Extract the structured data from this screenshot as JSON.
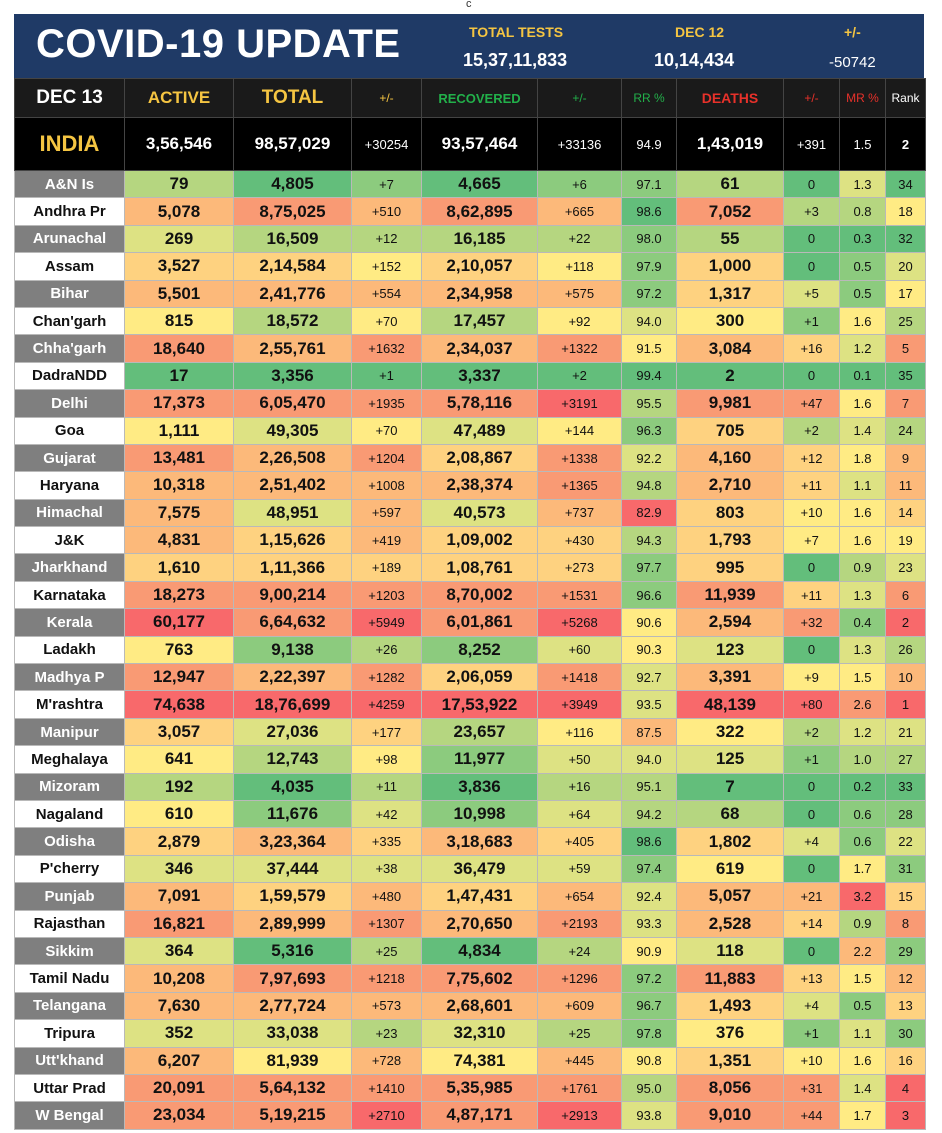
{
  "page_mark": "c",
  "header": {
    "title": "COVID-19 UPDATE",
    "tests_label": "TOTAL TESTS",
    "tests_value": "15,37,11,833",
    "dec12_label": "DEC 12",
    "dec12_value": "10,14,434",
    "diff_label": "+/-",
    "diff_value": "-50742"
  },
  "columns": {
    "date": "DEC 13",
    "active": "ACTIVE",
    "total": "TOTAL",
    "pm1": "+/-",
    "recovered": "RECOVERED",
    "pm2": "+/-",
    "rr": "RR %",
    "deaths": "DEATHS",
    "pm3": "+/-",
    "mr": "MR %",
    "rank": "Rank"
  },
  "colors": {
    "header_bg": "#1f3a66",
    "label_yellow": "#f5c542",
    "recovered_green": "#22b04a",
    "deaths_red": "#e8312a"
  },
  "india": {
    "name": "INDIA",
    "active": "3,56,546",
    "total": "98,57,029",
    "pm1": "+30254",
    "recovered": "93,57,464",
    "pm2": "+33136",
    "rr": "94.9",
    "deaths": "1,43,019",
    "pm3": "+391",
    "mr": "1.5",
    "rank": "2"
  },
  "rows": [
    [
      "A&N Is",
      "79",
      "4,805",
      "+7",
      "4,665",
      "+6",
      "97.1",
      "61",
      "0",
      "1.3",
      "34"
    ],
    [
      "Andhra Pr",
      "5,078",
      "8,75,025",
      "+510",
      "8,62,895",
      "+665",
      "98.6",
      "7,052",
      "+3",
      "0.8",
      "18"
    ],
    [
      "Arunachal",
      "269",
      "16,509",
      "+12",
      "16,185",
      "+22",
      "98.0",
      "55",
      "0",
      "0.3",
      "32"
    ],
    [
      "Assam",
      "3,527",
      "2,14,584",
      "+152",
      "2,10,057",
      "+118",
      "97.9",
      "1,000",
      "0",
      "0.5",
      "20"
    ],
    [
      "Bihar",
      "5,501",
      "2,41,776",
      "+554",
      "2,34,958",
      "+575",
      "97.2",
      "1,317",
      "+5",
      "0.5",
      "17"
    ],
    [
      "Chan'garh",
      "815",
      "18,572",
      "+70",
      "17,457",
      "+92",
      "94.0",
      "300",
      "+1",
      "1.6",
      "25"
    ],
    [
      "Chha'garh",
      "18,640",
      "2,55,761",
      "+1632",
      "2,34,037",
      "+1322",
      "91.5",
      "3,084",
      "+16",
      "1.2",
      "5"
    ],
    [
      "DadraNDD",
      "17",
      "3,356",
      "+1",
      "3,337",
      "+2",
      "99.4",
      "2",
      "0",
      "0.1",
      "35"
    ],
    [
      "Delhi",
      "17,373",
      "6,05,470",
      "+1935",
      "5,78,116",
      "+3191",
      "95.5",
      "9,981",
      "+47",
      "1.6",
      "7"
    ],
    [
      "Goa",
      "1,111",
      "49,305",
      "+70",
      "47,489",
      "+144",
      "96.3",
      "705",
      "+2",
      "1.4",
      "24"
    ],
    [
      "Gujarat",
      "13,481",
      "2,26,508",
      "+1204",
      "2,08,867",
      "+1338",
      "92.2",
      "4,160",
      "+12",
      "1.8",
      "9"
    ],
    [
      "Haryana",
      "10,318",
      "2,51,402",
      "+1008",
      "2,38,374",
      "+1365",
      "94.8",
      "2,710",
      "+11",
      "1.1",
      "11"
    ],
    [
      "Himachal",
      "7,575",
      "48,951",
      "+597",
      "40,573",
      "+737",
      "82.9",
      "803",
      "+10",
      "1.6",
      "14"
    ],
    [
      "J&K",
      "4,831",
      "1,15,626",
      "+419",
      "1,09,002",
      "+430",
      "94.3",
      "1,793",
      "+7",
      "1.6",
      "19"
    ],
    [
      "Jharkhand",
      "1,610",
      "1,11,366",
      "+189",
      "1,08,761",
      "+273",
      "97.7",
      "995",
      "0",
      "0.9",
      "23"
    ],
    [
      "Karnataka",
      "18,273",
      "9,00,214",
      "+1203",
      "8,70,002",
      "+1531",
      "96.6",
      "11,939",
      "+11",
      "1.3",
      "6"
    ],
    [
      "Kerala",
      "60,177",
      "6,64,632",
      "+5949",
      "6,01,861",
      "+5268",
      "90.6",
      "2,594",
      "+32",
      "0.4",
      "2"
    ],
    [
      "Ladakh",
      "763",
      "9,138",
      "+26",
      "8,252",
      "+60",
      "90.3",
      "123",
      "0",
      "1.3",
      "26"
    ],
    [
      "Madhya P",
      "12,947",
      "2,22,397",
      "+1282",
      "2,06,059",
      "+1418",
      "92.7",
      "3,391",
      "+9",
      "1.5",
      "10"
    ],
    [
      "M'rashtra",
      "74,638",
      "18,76,699",
      "+4259",
      "17,53,922",
      "+3949",
      "93.5",
      "48,139",
      "+80",
      "2.6",
      "1"
    ],
    [
      "Manipur",
      "3,057",
      "27,036",
      "+177",
      "23,657",
      "+116",
      "87.5",
      "322",
      "+2",
      "1.2",
      "21"
    ],
    [
      "Meghalaya",
      "641",
      "12,743",
      "+98",
      "11,977",
      "+50",
      "94.0",
      "125",
      "+1",
      "1.0",
      "27"
    ],
    [
      "Mizoram",
      "192",
      "4,035",
      "+11",
      "3,836",
      "+16",
      "95.1",
      "7",
      "0",
      "0.2",
      "33"
    ],
    [
      "Nagaland",
      "610",
      "11,676",
      "+42",
      "10,998",
      "+64",
      "94.2",
      "68",
      "0",
      "0.6",
      "28"
    ],
    [
      "Odisha",
      "2,879",
      "3,23,364",
      "+335",
      "3,18,683",
      "+405",
      "98.6",
      "1,802",
      "+4",
      "0.6",
      "22"
    ],
    [
      "P'cherry",
      "346",
      "37,444",
      "+38",
      "36,479",
      "+59",
      "97.4",
      "619",
      "0",
      "1.7",
      "31"
    ],
    [
      "Punjab",
      "7,091",
      "1,59,579",
      "+480",
      "1,47,431",
      "+654",
      "92.4",
      "5,057",
      "+21",
      "3.2",
      "15"
    ],
    [
      "Rajasthan",
      "16,821",
      "2,89,999",
      "+1307",
      "2,70,650",
      "+2193",
      "93.3",
      "2,528",
      "+14",
      "0.9",
      "8"
    ],
    [
      "Sikkim",
      "364",
      "5,316",
      "+25",
      "4,834",
      "+24",
      "90.9",
      "118",
      "0",
      "2.2",
      "29"
    ],
    [
      "Tamil Nadu",
      "10,208",
      "7,97,693",
      "+1218",
      "7,75,602",
      "+1296",
      "97.2",
      "11,883",
      "+13",
      "1.5",
      "12"
    ],
    [
      "Telangana",
      "7,630",
      "2,77,724",
      "+573",
      "2,68,601",
      "+609",
      "96.7",
      "1,493",
      "+4",
      "0.5",
      "13"
    ],
    [
      "Tripura",
      "352",
      "33,038",
      "+23",
      "32,310",
      "+25",
      "97.8",
      "376",
      "+1",
      "1.1",
      "30"
    ],
    [
      "Utt'khand",
      "6,207",
      "81,939",
      "+728",
      "74,381",
      "+445",
      "90.8",
      "1,351",
      "+10",
      "1.6",
      "16"
    ],
    [
      "Uttar Prad",
      "20,091",
      "5,64,132",
      "+1410",
      "5,35,985",
      "+1761",
      "95.0",
      "8,056",
      "+31",
      "1.4",
      "4"
    ],
    [
      "W Bengal",
      "23,034",
      "5,19,215",
      "+2710",
      "4,87,171",
      "+2913",
      "93.8",
      "9,010",
      "+44",
      "1.7",
      "3"
    ]
  ]
}
